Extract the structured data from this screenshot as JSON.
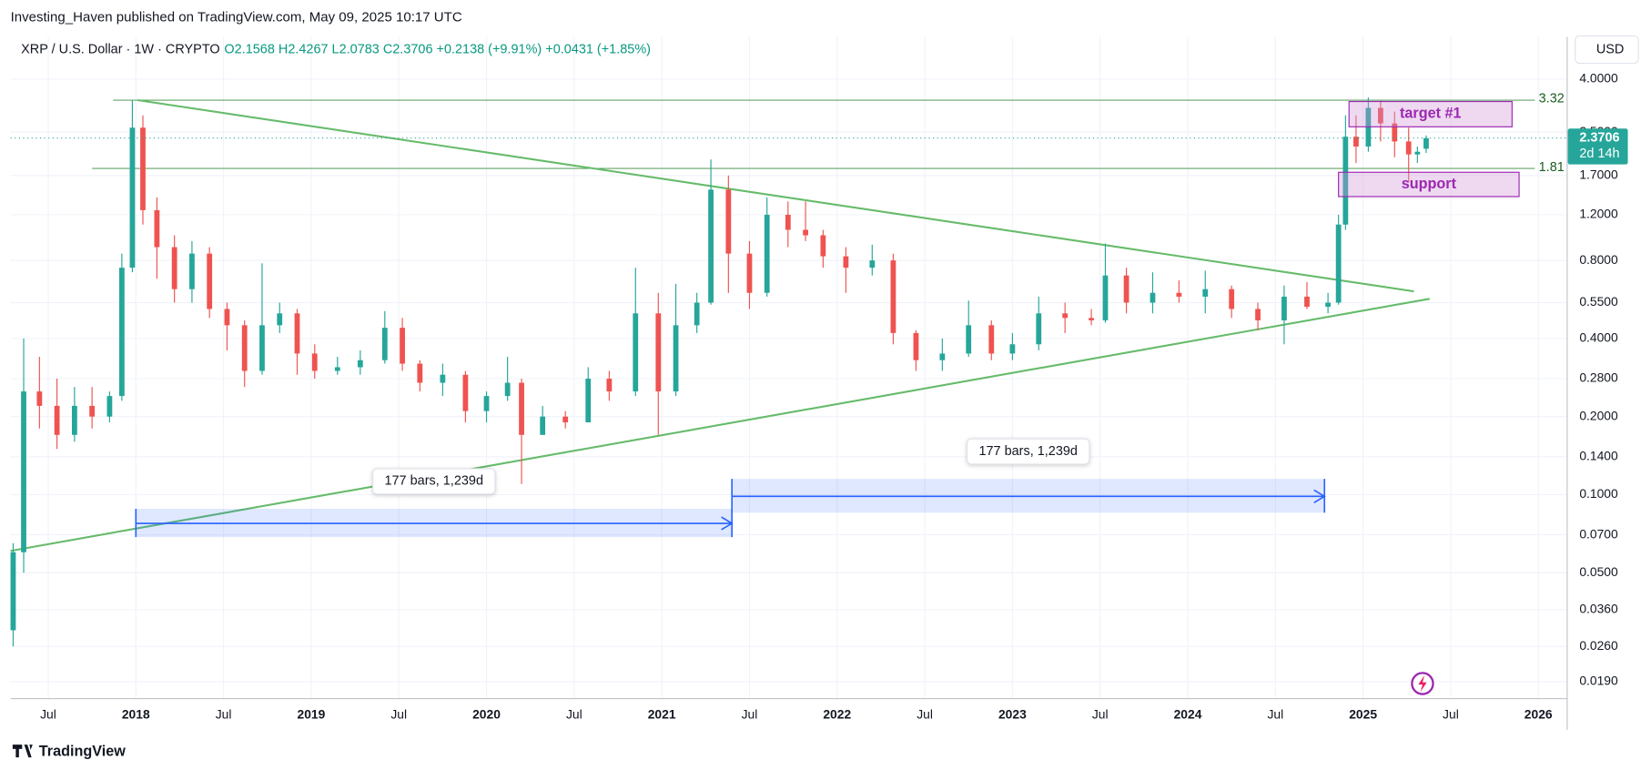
{
  "chart_data": {
    "type": "candlestick",
    "header": "Investing_Haven published on TradingView.com, May 09, 2025 10:17 UTC",
    "title": "XRP / U.S. Dollar · 1W · CRYPTO",
    "ohlc_legend": "O2.1568 H2.4267 L2.0783 C2.3706 +0.2138 (+9.91%) +0.0431 (+1.85%)",
    "currency": "USD",
    "footer": "TradingView",
    "log_scale": true,
    "grid": true,
    "up_color": "#26a69a",
    "down_color": "#ef5350",
    "xlim": [
      2017.285,
      2026.162
    ],
    "xticks": [
      {
        "value": 2017.5,
        "label": "Jul"
      },
      2018,
      {
        "value": 2018.5,
        "label": "Jul"
      },
      2019,
      {
        "value": 2019.5,
        "label": "Jul"
      },
      2020,
      {
        "value": 2020.5,
        "label": "Jul"
      },
      2021,
      {
        "value": 2021.5,
        "label": "Jul"
      },
      2022,
      {
        "value": 2022.5,
        "label": "Jul"
      },
      2023,
      {
        "value": 2023.5,
        "label": "Jul"
      },
      2024,
      {
        "value": 2024.5,
        "label": "Jul"
      },
      2025,
      {
        "value": 2025.5,
        "label": "Jul"
      },
      2026
    ],
    "ylim": [
      0.0164,
      5.82
    ],
    "yticks": [
      {
        "value": 4,
        "label": "4.0000"
      },
      {
        "value": 2.5,
        "label": "2.5000"
      },
      {
        "value": 1.7,
        "label": "1.7000"
      },
      {
        "value": 1.2,
        "label": "1.2000"
      },
      {
        "value": 0.8,
        "label": "0.8000"
      },
      {
        "value": 0.55,
        "label": "0.5500"
      },
      {
        "value": 0.4,
        "label": "0.4000"
      },
      {
        "value": 0.28,
        "label": "0.2800"
      },
      {
        "value": 0.2,
        "label": "0.2000"
      },
      {
        "value": 0.14,
        "label": "0.1400"
      },
      {
        "value": 0.1,
        "label": "0.1000"
      },
      {
        "value": 0.07,
        "label": "0.0700"
      },
      {
        "value": 0.05,
        "label": "0.0500"
      },
      {
        "value": 0.036,
        "label": "0.0360"
      },
      {
        "value": 0.026,
        "label": "0.0260"
      },
      {
        "value": 0.019,
        "label": "0.0190"
      }
    ],
    "candles": {
      "x": [
        2017.3,
        2017.36,
        2017.45,
        2017.55,
        2017.65,
        2017.75,
        2017.85,
        2017.92,
        2017.98,
        2018.04,
        2018.12,
        2018.22,
        2018.32,
        2018.42,
        2018.52,
        2018.62,
        2018.72,
        2018.82,
        2018.92,
        2019.02,
        2019.15,
        2019.28,
        2019.42,
        2019.52,
        2019.62,
        2019.75,
        2019.88,
        2020.0,
        2020.12,
        2020.2,
        2020.32,
        2020.45,
        2020.58,
        2020.7,
        2020.85,
        2020.98,
        2021.08,
        2021.2,
        2021.28,
        2021.38,
        2021.5,
        2021.6,
        2021.72,
        2021.82,
        2021.92,
        2022.05,
        2022.2,
        2022.32,
        2022.45,
        2022.6,
        2022.75,
        2022.88,
        2023.0,
        2023.15,
        2023.3,
        2023.45,
        2023.53,
        2023.65,
        2023.8,
        2023.95,
        2024.1,
        2024.25,
        2024.4,
        2024.55,
        2024.68,
        2024.8,
        2024.86,
        2024.9,
        2024.96,
        2025.03,
        2025.1,
        2025.18,
        2025.26,
        2025.31,
        2025.36
      ],
      "open": [
        0.03,
        0.06,
        0.25,
        0.22,
        0.17,
        0.22,
        0.2,
        0.24,
        0.75,
        2.6,
        1.25,
        0.9,
        0.62,
        0.85,
        0.52,
        0.45,
        0.3,
        0.45,
        0.5,
        0.35,
        0.3,
        0.31,
        0.33,
        0.44,
        0.32,
        0.27,
        0.29,
        0.21,
        0.24,
        0.27,
        0.17,
        0.2,
        0.19,
        0.28,
        0.25,
        0.5,
        0.25,
        0.45,
        0.55,
        1.5,
        0.85,
        0.6,
        1.2,
        1.05,
        1.0,
        0.83,
        0.75,
        0.8,
        0.42,
        0.33,
        0.35,
        0.45,
        0.35,
        0.38,
        0.5,
        0.48,
        0.47,
        0.7,
        0.55,
        0.6,
        0.58,
        0.62,
        0.52,
        0.47,
        0.58,
        0.53,
        0.55,
        1.1,
        2.4,
        2.2,
        3.1,
        2.7,
        2.3,
        2.05,
        2.1568
      ],
      "high": [
        0.065,
        0.4,
        0.34,
        0.28,
        0.26,
        0.26,
        0.25,
        0.85,
        3.32,
        2.9,
        1.4,
        1.0,
        0.95,
        0.9,
        0.55,
        0.47,
        0.78,
        0.55,
        0.52,
        0.38,
        0.34,
        0.36,
        0.51,
        0.48,
        0.33,
        0.32,
        0.3,
        0.25,
        0.34,
        0.28,
        0.22,
        0.21,
        0.31,
        0.3,
        0.75,
        0.6,
        0.65,
        0.6,
        1.96,
        1.7,
        0.95,
        1.4,
        1.35,
        1.35,
        1.05,
        0.9,
        0.92,
        0.85,
        0.43,
        0.4,
        0.56,
        0.47,
        0.42,
        0.58,
        0.55,
        0.52,
        0.93,
        0.75,
        0.72,
        0.67,
        0.73,
        0.64,
        0.55,
        0.64,
        0.66,
        0.6,
        1.2,
        2.9,
        2.9,
        3.4,
        3.3,
        3.0,
        2.6,
        2.2,
        2.4267
      ],
      "low": [
        0.026,
        0.05,
        0.18,
        0.15,
        0.16,
        0.18,
        0.19,
        0.23,
        0.72,
        1.1,
        0.68,
        0.55,
        0.55,
        0.48,
        0.36,
        0.26,
        0.29,
        0.42,
        0.29,
        0.28,
        0.29,
        0.29,
        0.32,
        0.3,
        0.25,
        0.24,
        0.19,
        0.19,
        0.23,
        0.11,
        0.17,
        0.18,
        0.19,
        0.23,
        0.24,
        0.17,
        0.24,
        0.42,
        0.54,
        0.6,
        0.52,
        0.58,
        0.9,
        0.95,
        0.75,
        0.6,
        0.7,
        0.38,
        0.3,
        0.3,
        0.34,
        0.33,
        0.33,
        0.36,
        0.42,
        0.45,
        0.46,
        0.5,
        0.5,
        0.55,
        0.5,
        0.48,
        0.43,
        0.38,
        0.52,
        0.5,
        0.54,
        1.05,
        1.9,
        2.1,
        2.3,
        2.0,
        1.6,
        1.9,
        2.0783
      ],
      "close": [
        0.06,
        0.25,
        0.22,
        0.17,
        0.22,
        0.2,
        0.24,
        0.75,
        2.6,
        1.25,
        0.9,
        0.62,
        0.85,
        0.52,
        0.45,
        0.3,
        0.45,
        0.5,
        0.35,
        0.3,
        0.31,
        0.33,
        0.44,
        0.32,
        0.27,
        0.29,
        0.21,
        0.24,
        0.27,
        0.17,
        0.2,
        0.19,
        0.28,
        0.25,
        0.5,
        0.25,
        0.45,
        0.55,
        1.5,
        0.85,
        0.6,
        1.2,
        1.05,
        1.0,
        0.83,
        0.75,
        0.8,
        0.42,
        0.33,
        0.35,
        0.45,
        0.35,
        0.38,
        0.5,
        0.48,
        0.47,
        0.7,
        0.55,
        0.6,
        0.58,
        0.62,
        0.52,
        0.47,
        0.58,
        0.53,
        0.55,
        1.1,
        2.4,
        2.2,
        3.1,
        2.7,
        2.3,
        2.05,
        2.1,
        2.3706
      ]
    },
    "last_price": {
      "value": 2.3706,
      "label": "2.3706",
      "countdown": "2d 14h"
    },
    "levels": [
      {
        "value": 3.32,
        "label": "3.32",
        "x": [
          2017.87,
          2025.98
        ]
      },
      {
        "value": 1.81,
        "label": "1.81",
        "x": [
          2017.75,
          2025.98
        ]
      }
    ],
    "trendlines": [
      {
        "x": [
          2018.01,
          2025.29
        ],
        "y": [
          3.32,
          0.608
        ]
      },
      {
        "x": [
          2017.285,
          2025.38
        ],
        "y": [
          0.0607,
          0.569
        ]
      }
    ],
    "zones": [
      {
        "label": "target #1",
        "x": [
          2024.92,
          2025.85
        ],
        "y": [
          2.62,
          3.28
        ]
      },
      {
        "label": "support",
        "x": [
          2024.86,
          2025.89
        ],
        "y": [
          1.41,
          1.75
        ]
      }
    ],
    "measures": [
      {
        "label": "177 bars, 1,239d",
        "x": [
          2018.0,
          2021.4
        ],
        "y": [
          0.0686,
          0.0882
        ],
        "arrow": 0.0775
      },
      {
        "label": "177 bars, 1,239d",
        "x": [
          2021.4,
          2024.78
        ],
        "y": [
          0.0852,
          0.115
        ],
        "arrow": 0.0985
      }
    ]
  }
}
